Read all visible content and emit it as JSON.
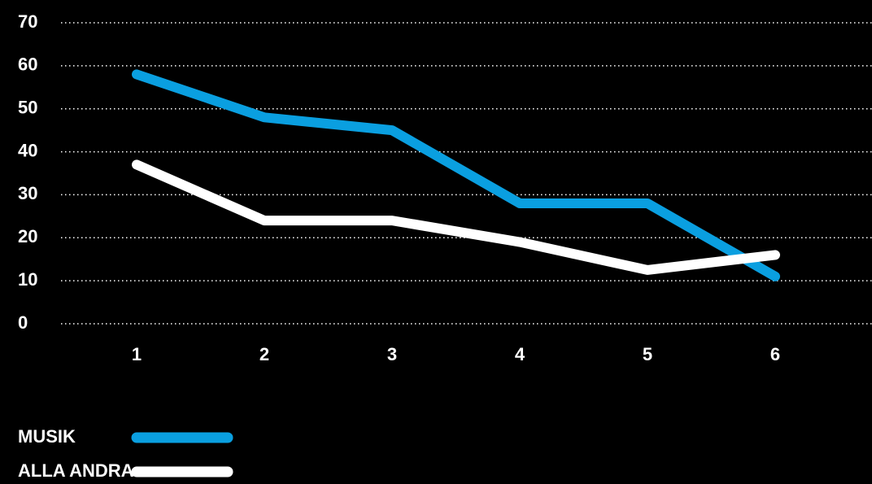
{
  "chart_data": {
    "type": "line",
    "categories": [
      "1",
      "2",
      "3",
      "4",
      "5",
      "6"
    ],
    "series": [
      {
        "name": "MUSIK",
        "color": "#0a9fe0",
        "values": [
          58,
          48,
          45,
          28,
          28,
          11
        ]
      },
      {
        "name": "ALLA ANDRA",
        "color": "#ffffff",
        "values": [
          37,
          24,
          24,
          19,
          12.5,
          16
        ]
      }
    ],
    "ylim": [
      0,
      70
    ],
    "yticks": [
      0,
      10,
      20,
      30,
      40,
      50,
      60,
      70
    ],
    "grid": true,
    "legend": "bottom-left"
  }
}
